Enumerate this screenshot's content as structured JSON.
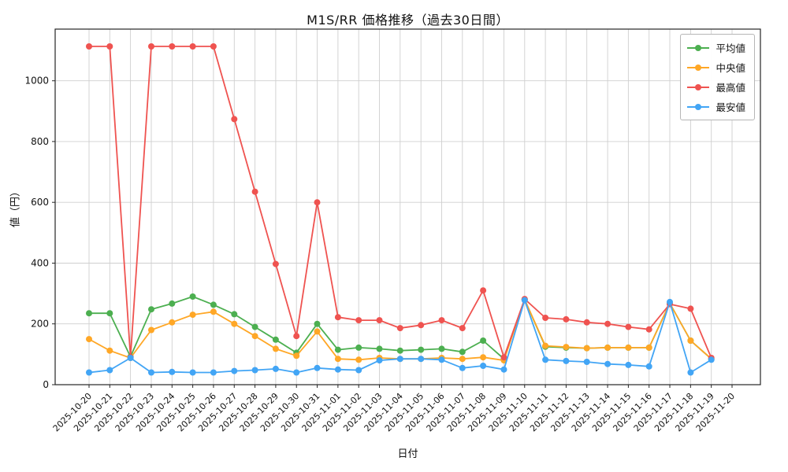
{
  "chart_data": {
    "type": "line",
    "title": "M1S/RR 価格推移（過去30日間）",
    "xlabel": "日付",
    "ylabel": "値（円）",
    "ylim": [
      0,
      1170
    ],
    "yticks": [
      0,
      200,
      400,
      600,
      800,
      1000
    ],
    "grid": true,
    "legend_position": "upper right",
    "marker": "circle",
    "x": [
      "2025-10-20",
      "2025-10-21",
      "2025-10-22",
      "2025-10-23",
      "2025-10-24",
      "2025-10-25",
      "2025-10-26",
      "2025-10-27",
      "2025-10-28",
      "2025-10-29",
      "2025-10-30",
      "2025-10-31",
      "2025-11-01",
      "2025-11-02",
      "2025-11-03",
      "2025-11-04",
      "2025-11-05",
      "2025-11-06",
      "2025-11-07",
      "2025-11-08",
      "2025-11-09",
      "2025-11-10",
      "2025-11-11",
      "2025-11-12",
      "2025-11-13",
      "2025-11-14",
      "2025-11-15",
      "2025-11-16",
      "2025-11-17",
      "2025-11-18",
      "2025-11-19",
      "2025-11-20"
    ],
    "series": [
      {
        "key": "average",
        "name": "平均値",
        "color": "#4caf50",
        "values": [
          235,
          235,
          92,
          248,
          267,
          290,
          263,
          232,
          190,
          148,
          105,
          200,
          115,
          122,
          118,
          112,
          115,
          118,
          108,
          145,
          85,
          280,
          125,
          122,
          120,
          122,
          122,
          122,
          268,
          145,
          85,
          null
        ]
      },
      {
        "key": "median",
        "name": "中央値",
        "color": "#ffa726",
        "values": [
          150,
          112,
          88,
          180,
          205,
          230,
          240,
          200,
          160,
          118,
          95,
          175,
          85,
          82,
          88,
          85,
          85,
          88,
          85,
          90,
          80,
          280,
          128,
          124,
          120,
          122,
          122,
          122,
          268,
          145,
          85,
          null
        ]
      },
      {
        "key": "max",
        "name": "最高値",
        "color": "#ef5350",
        "values": [
          1113,
          1113,
          90,
          1113,
          1113,
          1113,
          1113,
          874,
          635,
          397,
          160,
          600,
          222,
          212,
          212,
          186,
          196,
          212,
          186,
          310,
          90,
          282,
          220,
          215,
          205,
          200,
          190,
          182,
          265,
          250,
          88,
          null
        ]
      },
      {
        "key": "min",
        "name": "最安値",
        "color": "#42a5f5",
        "values": [
          40,
          48,
          88,
          40,
          42,
          40,
          40,
          45,
          48,
          52,
          40,
          55,
          50,
          48,
          80,
          85,
          85,
          82,
          55,
          62,
          50,
          278,
          82,
          78,
          75,
          68,
          65,
          60,
          272,
          40,
          82,
          null
        ]
      }
    ]
  }
}
